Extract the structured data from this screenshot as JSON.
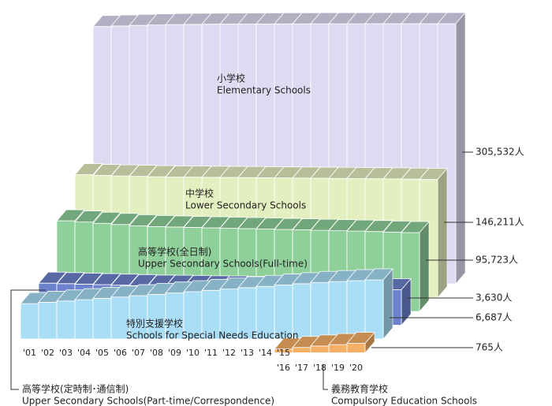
{
  "chart_data": {
    "type": "bar3d",
    "categories": [
      "'01",
      "'02",
      "'03",
      "'04",
      "'05",
      "'06",
      "'07",
      "'08",
      "'09",
      "'10",
      "'11",
      "'12",
      "'13",
      "'14",
      "'15",
      "'16",
      "'17",
      "'18",
      "'19",
      "'20"
    ],
    "series": [
      {
        "name": "小学校",
        "name_en": "Elementary Schools",
        "color": "#dddbf1",
        "values": [
          302100,
          302800,
          303500,
          304000,
          304500,
          304700,
          304900,
          305000,
          305100,
          305200,
          305300,
          305300,
          305400,
          305400,
          305400,
          305500,
          305500,
          305500,
          305500,
          305532
        ],
        "value_labels": [
          null,
          null,
          null,
          null,
          null,
          null,
          null,
          null,
          null,
          null,
          null,
          null,
          null,
          null,
          null,
          null,
          null,
          null,
          null,
          "305,532人"
        ]
      },
      {
        "name": "中学校",
        "name_en": "Lower Secondary Schools",
        "color": "#e4efbf",
        "values": [
          152000,
          151000,
          150500,
          150000,
          149500,
          149000,
          149000,
          148800,
          148600,
          148400,
          148200,
          148000,
          147800,
          147600,
          147400,
          147200,
          147000,
          146800,
          146500,
          146211
        ],
        "value_labels": [
          null,
          null,
          null,
          null,
          null,
          null,
          null,
          null,
          null,
          null,
          null,
          null,
          null,
          null,
          null,
          null,
          null,
          null,
          null,
          "146,211人"
        ]
      },
      {
        "name": "高等学校(全日制)",
        "name_en": "Upper Secondary Schools(Full-time)",
        "color": "#8ecf9a",
        "values": [
          110000,
          108500,
          107000,
          105500,
          104000,
          103000,
          102500,
          102000,
          101500,
          101000,
          100500,
          100000,
          99500,
          99000,
          98500,
          98000,
          97500,
          97000,
          96300,
          95723
        ],
        "value_labels": [
          null,
          null,
          null,
          null,
          null,
          null,
          null,
          null,
          null,
          null,
          null,
          null,
          null,
          null,
          null,
          null,
          null,
          null,
          null,
          "95,723人"
        ]
      },
      {
        "name": "高等学校(定時制･通信制)",
        "name_en": "Upper Secondary Schools(Part-time/Correspondence)",
        "color": "#6d82cc",
        "values": [
          4300,
          4250,
          4200,
          4150,
          4100,
          4050,
          4000,
          3980,
          3950,
          3920,
          3900,
          3870,
          3840,
          3800,
          3770,
          3740,
          3710,
          3680,
          3650,
          3630
        ],
        "value_labels": [
          null,
          null,
          null,
          null,
          null,
          null,
          null,
          null,
          null,
          null,
          null,
          null,
          null,
          null,
          null,
          null,
          null,
          null,
          null,
          "3,630人"
        ]
      },
      {
        "name": "特別支援学校",
        "name_en": "Schools for Special Needs Education",
        "color": "#a9def6",
        "values": [
          4000,
          4150,
          4300,
          4450,
          4600,
          4750,
          4900,
          5050,
          5200,
          5350,
          5500,
          5650,
          5800,
          5950,
          6100,
          6250,
          6400,
          6500,
          6600,
          6687
        ],
        "value_labels": [
          null,
          null,
          null,
          null,
          null,
          null,
          null,
          null,
          null,
          null,
          null,
          null,
          null,
          null,
          null,
          null,
          null,
          null,
          null,
          "6,687人"
        ]
      },
      {
        "name": "義務教育学校",
        "name_en": "Compulsory Education Schools",
        "color": "#f6b066",
        "values": [
          null,
          null,
          null,
          null,
          null,
          null,
          null,
          null,
          null,
          null,
          null,
          null,
          null,
          null,
          null,
          300,
          430,
          550,
          660,
          765
        ],
        "value_labels": [
          null,
          null,
          null,
          null,
          null,
          null,
          null,
          null,
          null,
          null,
          null,
          null,
          null,
          null,
          null,
          null,
          null,
          null,
          null,
          "765人"
        ]
      }
    ]
  }
}
